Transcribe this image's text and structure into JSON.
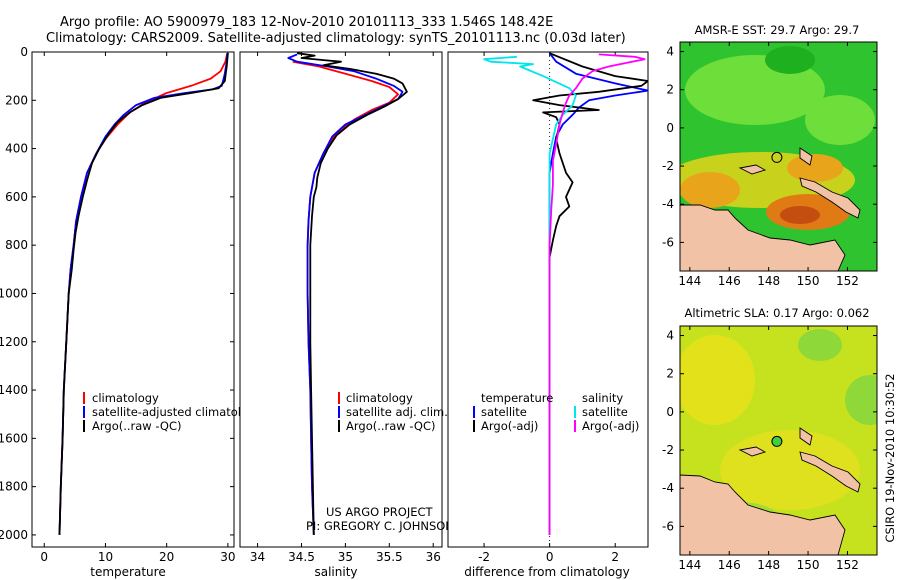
{
  "title": {
    "line1": "Argo profile: AO 5900979_183 12-Nov-2010 20101113_333 1.546S 148.42E",
    "line2": "Climatology: CARS2009. Satellite-adjusted climatology: synTS_20101113.nc (0.03d later)"
  },
  "credit": "CSIRO 19-Nov-2010 10:30:52",
  "project": {
    "line1": "US ARGO PROJECT",
    "line2": "PI: GREGORY C. JOHNSON"
  },
  "colors": {
    "climatology": "#ff0000",
    "satellite": "#0000ff",
    "argo": "#000000",
    "sat_salinity": "#00e5ee",
    "argo_salinity": "#ff00ff"
  },
  "chart_data": [
    {
      "type": "line",
      "id": "temperature",
      "xlabel": "temperature",
      "xlim": [
        -2,
        31
      ],
      "ylim": [
        0,
        2050
      ],
      "xticks": [
        0,
        10,
        20,
        30
      ],
      "yticks": [
        0,
        200,
        400,
        600,
        800,
        1000,
        1200,
        1400,
        1600,
        1800,
        2000
      ],
      "legend": [
        "climatology",
        "satellite-adjusted climatology",
        "Argo(..raw -QC)"
      ],
      "series": [
        {
          "name": "climatology",
          "color": "#ff0000",
          "points": [
            [
              29.9,
              5
            ],
            [
              29.6,
              40
            ],
            [
              28.8,
              80
            ],
            [
              27.2,
              110
            ],
            [
              24.0,
              140
            ],
            [
              20.0,
              170
            ],
            [
              16.5,
              210
            ],
            [
              14.0,
              250
            ],
            [
              12.0,
              300
            ],
            [
              10.0,
              360
            ],
            [
              8.5,
              420
            ],
            [
              7.0,
              500
            ],
            [
              6.0,
              600
            ],
            [
              5.2,
              700
            ],
            [
              4.8,
              800
            ],
            [
              4.3,
              900
            ],
            [
              4.0,
              1000
            ],
            [
              3.6,
              1200
            ],
            [
              3.2,
              1400
            ],
            [
              3.0,
              1600
            ],
            [
              2.7,
              1800
            ],
            [
              2.5,
              2000
            ]
          ]
        },
        {
          "name": "satellite-adjusted climatology",
          "color": "#0000ff",
          "points": [
            [
              29.9,
              5
            ],
            [
              29.8,
              40
            ],
            [
              29.5,
              90
            ],
            [
              29.0,
              140
            ],
            [
              27.5,
              155
            ],
            [
              23.0,
              170
            ],
            [
              18.0,
              190
            ],
            [
              15.0,
              220
            ],
            [
              13.0,
              260
            ],
            [
              11.5,
              300
            ],
            [
              10.0,
              350
            ],
            [
              8.5,
              420
            ],
            [
              7.0,
              500
            ],
            [
              6.0,
              600
            ],
            [
              5.2,
              700
            ],
            [
              4.8,
              800
            ],
            [
              4.3,
              900
            ],
            [
              4.0,
              1000
            ],
            [
              3.6,
              1200
            ],
            [
              3.2,
              1400
            ],
            [
              3.0,
              1600
            ],
            [
              2.7,
              1800
            ],
            [
              2.5,
              2000
            ]
          ]
        },
        {
          "name": "Argo(..raw -QC)",
          "color": "#000000",
          "points": [
            [
              30.0,
              5
            ],
            [
              29.8,
              60
            ],
            [
              29.5,
              120
            ],
            [
              28.5,
              150
            ],
            [
              24.0,
              170
            ],
            [
              19.0,
              190
            ],
            [
              16.0,
              220
            ],
            [
              14.0,
              250
            ],
            [
              12.0,
              290
            ],
            [
              10.5,
              340
            ],
            [
              9.0,
              400
            ],
            [
              7.8,
              460
            ],
            [
              7.0,
              530
            ],
            [
              6.3,
              600
            ],
            [
              5.6,
              680
            ],
            [
              5.1,
              750
            ],
            [
              4.8,
              820
            ],
            [
              4.5,
              900
            ],
            [
              4.0,
              1000
            ],
            [
              3.6,
              1200
            ],
            [
              3.2,
              1400
            ],
            [
              3.0,
              1600
            ],
            [
              2.7,
              1800
            ],
            [
              2.5,
              2000
            ]
          ]
        }
      ]
    },
    {
      "type": "line",
      "id": "salinity",
      "xlabel": "salinity",
      "xlim": [
        33.8,
        36.1
      ],
      "ylim": [
        0,
        2050
      ],
      "xticks": [
        34,
        34.5,
        35,
        35.5,
        36
      ],
      "legend": [
        "climatology",
        "satellite adj. clim.",
        "Argo(..raw -QC)"
      ],
      "series": [
        {
          "name": "climatology",
          "color": "#ff0000",
          "points": [
            [
              34.4,
              40
            ],
            [
              34.7,
              60
            ],
            [
              35.0,
              90
            ],
            [
              35.3,
              120
            ],
            [
              35.5,
              145
            ],
            [
              35.6,
              175
            ],
            [
              35.5,
              210
            ],
            [
              35.3,
              240
            ],
            [
              35.1,
              280
            ],
            [
              34.95,
              320
            ],
            [
              34.85,
              360
            ],
            [
              34.75,
              420
            ],
            [
              34.65,
              500
            ],
            [
              34.6,
              600
            ],
            [
              34.58,
              700
            ],
            [
              34.57,
              800
            ],
            [
              34.57,
              1000
            ],
            [
              34.58,
              1200
            ],
            [
              34.6,
              1400
            ],
            [
              34.61,
              1600
            ],
            [
              34.62,
              1800
            ],
            [
              34.64,
              2000
            ]
          ]
        },
        {
          "name": "satellite adj. clim.",
          "color": "#0000ff",
          "points": [
            [
              34.45,
              10
            ],
            [
              34.35,
              25
            ],
            [
              34.45,
              40
            ],
            [
              34.8,
              60
            ],
            [
              35.1,
              80
            ],
            [
              35.35,
              110
            ],
            [
              35.55,
              140
            ],
            [
              35.65,
              165
            ],
            [
              35.6,
              195
            ],
            [
              35.4,
              230
            ],
            [
              35.2,
              265
            ],
            [
              35.0,
              300
            ],
            [
              34.85,
              350
            ],
            [
              34.75,
              420
            ],
            [
              34.65,
              500
            ],
            [
              34.6,
              600
            ],
            [
              34.58,
              700
            ],
            [
              34.57,
              800
            ],
            [
              34.57,
              1000
            ],
            [
              34.58,
              1200
            ],
            [
              34.6,
              1400
            ],
            [
              34.61,
              1600
            ],
            [
              34.62,
              1800
            ],
            [
              34.64,
              2000
            ]
          ]
        },
        {
          "name": "Argo(..raw -QC)",
          "color": "#000000",
          "points": [
            [
              34.45,
              5
            ],
            [
              34.65,
              15
            ],
            [
              34.5,
              25
            ],
            [
              34.8,
              35
            ],
            [
              34.95,
              40
            ],
            [
              34.75,
              55
            ],
            [
              35.05,
              70
            ],
            [
              35.35,
              90
            ],
            [
              35.55,
              110
            ],
            [
              35.65,
              130
            ],
            [
              35.7,
              165
            ],
            [
              35.6,
              195
            ],
            [
              35.45,
              225
            ],
            [
              35.25,
              260
            ],
            [
              35.05,
              300
            ],
            [
              34.9,
              345
            ],
            [
              34.8,
              400
            ],
            [
              34.72,
              460
            ],
            [
              34.68,
              520
            ],
            [
              34.67,
              560
            ],
            [
              34.64,
              600
            ],
            [
              34.62,
              680
            ],
            [
              34.6,
              800
            ],
            [
              34.6,
              1000
            ],
            [
              34.6,
              1200
            ],
            [
              34.61,
              1400
            ],
            [
              34.62,
              1600
            ],
            [
              34.63,
              1800
            ],
            [
              34.64,
              2000
            ]
          ]
        }
      ]
    },
    {
      "type": "line",
      "id": "difference",
      "xlabel": "difference from climatology",
      "xlim": [
        -3.1,
        3.0
      ],
      "ylim": [
        0,
        2050
      ],
      "xticks": [
        -2,
        0,
        2
      ],
      "legend_headers": [
        "temperature",
        "salinity"
      ],
      "legend": [
        "satellite",
        "Argo(-adj)",
        "satellite",
        "Argo(-adj)"
      ],
      "series": [
        {
          "name": "temperature satellite",
          "color": "#0000ff",
          "points": [
            [
              0.0,
              5
            ],
            [
              0.2,
              40
            ],
            [
              0.8,
              90
            ],
            [
              2.0,
              130
            ],
            [
              3.0,
              160
            ],
            [
              2.0,
              180
            ],
            [
              1.2,
              200
            ],
            [
              0.9,
              230
            ],
            [
              0.7,
              260
            ],
            [
              0.4,
              300
            ],
            [
              0.2,
              350
            ],
            [
              0.1,
              420
            ],
            [
              0.0,
              500
            ],
            [
              0.0,
              600
            ],
            [
              0.0,
              1000
            ],
            [
              0.0,
              2000
            ]
          ]
        },
        {
          "name": "temperature Argo(-adj)",
          "color": "#000000",
          "points": [
            [
              0.0,
              5
            ],
            [
              1.0,
              60
            ],
            [
              2.0,
              100
            ],
            [
              3.0,
              120
            ],
            [
              2.8,
              140
            ],
            [
              1.5,
              165
            ],
            [
              0.3,
              180
            ],
            [
              -0.5,
              200
            ],
            [
              0.3,
              220
            ],
            [
              1.5,
              240
            ],
            [
              -0.2,
              250
            ],
            [
              0.2,
              270
            ],
            [
              0.3,
              300
            ],
            [
              0.2,
              360
            ],
            [
              0.3,
              420
            ],
            [
              0.5,
              500
            ],
            [
              0.7,
              540
            ],
            [
              0.5,
              600
            ],
            [
              0.6,
              640
            ],
            [
              0.3,
              680
            ],
            [
              0.2,
              720
            ],
            [
              0.1,
              780
            ],
            [
              0.0,
              850
            ],
            [
              0.0,
              1000
            ],
            [
              0.0,
              2000
            ]
          ]
        },
        {
          "name": "salinity satellite",
          "color": "#00e5ee",
          "points": [
            [
              -1.0,
              20
            ],
            [
              -2.0,
              30
            ],
            [
              -1.8,
              40
            ],
            [
              -0.5,
              50
            ],
            [
              -0.9,
              60
            ],
            [
              -0.2,
              100
            ],
            [
              0.6,
              150
            ],
            [
              0.8,
              180
            ],
            [
              0.7,
              220
            ],
            [
              0.4,
              260
            ],
            [
              0.2,
              300
            ],
            [
              0.1,
              360
            ],
            [
              0.0,
              420
            ],
            [
              0.0,
              500
            ],
            [
              0.0,
              700
            ],
            [
              0.0,
              1000
            ],
            [
              0.0,
              2000
            ]
          ]
        },
        {
          "name": "salinity Argo(-adj)",
          "color": "#ff00ff",
          "points": [
            [
              1.5,
              10
            ],
            [
              2.6,
              20
            ],
            [
              2.9,
              30
            ],
            [
              1.8,
              60
            ],
            [
              1.3,
              80
            ],
            [
              1.0,
              110
            ],
            [
              0.8,
              150
            ],
            [
              0.6,
              180
            ],
            [
              0.5,
              210
            ],
            [
              0.4,
              250
            ],
            [
              0.3,
              300
            ],
            [
              0.2,
              380
            ],
            [
              0.1,
              450
            ],
            [
              0.1,
              550
            ],
            [
              0.05,
              650
            ],
            [
              0.0,
              800
            ],
            [
              0.0,
              1000
            ],
            [
              0.0,
              2000
            ]
          ]
        }
      ]
    },
    {
      "type": "heatmap",
      "id": "sst-map",
      "title": "AMSR-E SST: 29.7 Argo: 29.7",
      "xlim": [
        143.5,
        153.5
      ],
      "ylim": [
        -7.5,
        4.5
      ],
      "xticks": [
        144,
        146,
        148,
        150,
        152
      ],
      "yticks": [
        -6,
        -4,
        -2,
        0,
        2,
        4
      ],
      "marker": [
        148.42,
        -1.546
      ]
    },
    {
      "type": "heatmap",
      "id": "sla-map",
      "title": "Altimetric SLA: 0.17 Argo: 0.062",
      "xlim": [
        143.5,
        153.5
      ],
      "ylim": [
        -7.5,
        4.5
      ],
      "xticks": [
        144,
        146,
        148,
        150,
        152
      ],
      "yticks": [
        -6,
        -4,
        -2,
        0,
        2,
        4
      ],
      "marker": [
        148.42,
        -1.546
      ]
    }
  ]
}
